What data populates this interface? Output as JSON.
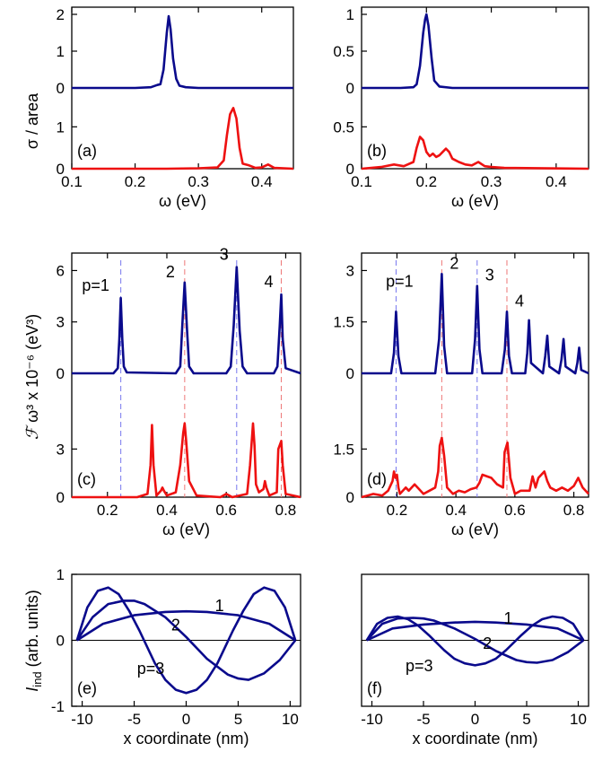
{
  "colors": {
    "blue": "#0a0a8c",
    "red": "#ee1111",
    "guide_blue": "#7777ee",
    "guide_red": "#ee7777"
  },
  "labels": {
    "ylabel_top": "σ / area",
    "ylabel_mid_glyph": "ℱ",
    "ylabel_mid_rest": " ω³ x 10⁻⁶ (eV³)",
    "ylabel_bot_main": "I",
    "ylabel_bot_sub": "ind",
    "ylabel_bot_rest": " (arb. units)",
    "xlabel_omega": "ω (eV)",
    "xlabel_x": "x coordinate (nm)"
  },
  "chart_data": [
    {
      "id": "a",
      "type": "line",
      "panel_label": "(a)",
      "xlabel": "ω (eV)",
      "ylabel": "σ / area",
      "xlim": [
        0.1,
        0.45
      ],
      "xticks": [
        "0.1",
        "0.2",
        "0.3",
        "0.4"
      ],
      "upper": {
        "ylim": [
          0,
          2
        ],
        "yticks": [
          "0",
          "1",
          "2"
        ]
      },
      "lower": {
        "ylim": [
          0,
          1.5
        ],
        "yticks": [
          "0",
          "1"
        ]
      },
      "series": [
        {
          "color": "blue",
          "offset": "upper",
          "x": [
            0.1,
            0.2,
            0.225,
            0.235,
            0.24,
            0.245,
            0.25,
            0.253,
            0.256,
            0.26,
            0.265,
            0.27,
            0.28,
            0.3,
            0.45
          ],
          "y": [
            0.0,
            0.0,
            0.02,
            0.08,
            0.1,
            0.5,
            1.5,
            1.95,
            1.6,
            0.8,
            0.25,
            0.06,
            0.02,
            0.0,
            0.0
          ]
        },
        {
          "color": "red",
          "offset": "lower",
          "x": [
            0.1,
            0.25,
            0.3,
            0.33,
            0.34,
            0.345,
            0.35,
            0.355,
            0.36,
            0.365,
            0.37,
            0.38,
            0.39,
            0.4,
            0.41,
            0.42,
            0.45
          ],
          "y": [
            0.0,
            0.0,
            0.01,
            0.03,
            0.2,
            0.8,
            1.3,
            1.45,
            1.2,
            0.5,
            0.12,
            0.08,
            0.02,
            0.03,
            0.1,
            0.02,
            0.0
          ]
        }
      ]
    },
    {
      "id": "b",
      "type": "line",
      "panel_label": "(b)",
      "xlabel": "ω (eV)",
      "xlim": [
        0.1,
        0.45
      ],
      "xticks": [
        "0.1",
        "0.2",
        "0.3",
        "0.4"
      ],
      "upper": {
        "ylim": [
          0,
          1
        ],
        "yticks": [
          "0",
          "0.5",
          "1"
        ]
      },
      "lower": {
        "ylim": [
          0,
          0.75
        ],
        "yticks": [
          "0",
          "0.5"
        ]
      },
      "series": [
        {
          "color": "blue",
          "offset": "upper",
          "x": [
            0.1,
            0.16,
            0.18,
            0.185,
            0.19,
            0.195,
            0.198,
            0.2,
            0.203,
            0.208,
            0.212,
            0.22,
            0.24,
            0.45
          ],
          "y": [
            0.0,
            0.0,
            0.01,
            0.05,
            0.3,
            0.75,
            0.93,
            1.0,
            0.85,
            0.4,
            0.1,
            0.02,
            0.0,
            0.0
          ]
        },
        {
          "color": "red",
          "offset": "lower",
          "x": [
            0.1,
            0.13,
            0.15,
            0.165,
            0.18,
            0.185,
            0.19,
            0.195,
            0.2,
            0.205,
            0.21,
            0.215,
            0.22,
            0.225,
            0.23,
            0.235,
            0.24,
            0.25,
            0.26,
            0.27,
            0.28,
            0.29,
            0.3,
            0.32,
            0.45
          ],
          "y": [
            0.0,
            0.02,
            0.05,
            0.03,
            0.08,
            0.25,
            0.38,
            0.34,
            0.2,
            0.15,
            0.18,
            0.14,
            0.16,
            0.2,
            0.24,
            0.2,
            0.12,
            0.08,
            0.05,
            0.04,
            0.08,
            0.03,
            0.02,
            0.01,
            0.0
          ]
        }
      ]
    },
    {
      "id": "c",
      "type": "line",
      "panel_label": "(c)",
      "xlabel": "ω (eV)",
      "ylabel": "ℱ ω³ x 10⁻⁶ (eV³)",
      "xlim": [
        0.08,
        0.85
      ],
      "xticks": [
        "0.2",
        "0.4",
        "0.6",
        "0.8"
      ],
      "upper": {
        "ylim": [
          0,
          6.6
        ],
        "yticks": [
          "0",
          "3",
          "6"
        ]
      },
      "lower": {
        "ylim": [
          0,
          6.6
        ],
        "yticks": [
          "0",
          "3"
        ]
      },
      "peak_labels": [
        "p=1",
        "2",
        "3",
        "4"
      ],
      "guide_lines": [
        {
          "x": 0.245,
          "color": "guide_blue"
        },
        {
          "x": 0.46,
          "color": "guide_red"
        },
        {
          "x": 0.635,
          "color": "guide_blue"
        },
        {
          "x": 0.785,
          "color": "guide_red"
        }
      ],
      "series": [
        {
          "color": "blue",
          "offset": "upper",
          "x": [
            0.08,
            0.22,
            0.235,
            0.24,
            0.245,
            0.25,
            0.255,
            0.265,
            0.43,
            0.445,
            0.452,
            0.46,
            0.468,
            0.475,
            0.49,
            0.6,
            0.615,
            0.625,
            0.635,
            0.645,
            0.655,
            0.67,
            0.76,
            0.772,
            0.78,
            0.785,
            0.79,
            0.8,
            0.85
          ],
          "y": [
            0.0,
            0.0,
            0.3,
            2.0,
            4.4,
            2.0,
            0.4,
            0.05,
            0.0,
            0.4,
            2.8,
            5.3,
            2.5,
            0.4,
            0.0,
            0.0,
            0.4,
            2.8,
            6.2,
            2.5,
            0.4,
            0.0,
            0.0,
            0.4,
            2.8,
            4.6,
            2.0,
            0.3,
            0.0
          ]
        },
        {
          "color": "red",
          "offset": "lower",
          "x": [
            0.08,
            0.3,
            0.335,
            0.345,
            0.35,
            0.355,
            0.365,
            0.38,
            0.385,
            0.39,
            0.4,
            0.43,
            0.445,
            0.455,
            0.46,
            0.465,
            0.475,
            0.5,
            0.58,
            0.6,
            0.62,
            0.67,
            0.68,
            0.69,
            0.695,
            0.7,
            0.71,
            0.725,
            0.73,
            0.735,
            0.745,
            0.77,
            0.775,
            0.785,
            0.79,
            0.8,
            0.85
          ],
          "y": [
            0.0,
            0.0,
            0.2,
            2.0,
            4.5,
            2.0,
            0.1,
            0.4,
            0.6,
            0.4,
            0.1,
            0.3,
            2.0,
            4.0,
            4.6,
            3.5,
            1.0,
            0.1,
            0.0,
            0.2,
            0.0,
            0.2,
            2.0,
            4.6,
            3.2,
            0.8,
            0.3,
            0.5,
            1.0,
            0.6,
            0.1,
            0.3,
            3.0,
            3.5,
            2.0,
            0.2,
            0.0
          ]
        }
      ]
    },
    {
      "id": "d",
      "type": "line",
      "panel_label": "(d)",
      "xlabel": "ω (eV)",
      "xlim": [
        0.08,
        0.85
      ],
      "xticks": [
        "0.2",
        "0.4",
        "0.6",
        "0.8"
      ],
      "upper": {
        "ylim": [
          0,
          3.3
        ],
        "yticks": [
          "0",
          "1.5",
          "3"
        ]
      },
      "lower": {
        "ylim": [
          0,
          3.3
        ],
        "yticks": [
          "0",
          "1.5"
        ]
      },
      "peak_labels": [
        "p=1",
        "2",
        "3",
        "4"
      ],
      "guide_lines": [
        {
          "x": 0.197,
          "color": "guide_blue"
        },
        {
          "x": 0.352,
          "color": "guide_red"
        },
        {
          "x": 0.472,
          "color": "guide_blue"
        },
        {
          "x": 0.573,
          "color": "guide_red"
        }
      ],
      "series": [
        {
          "color": "blue",
          "offset": "upper",
          "x": [
            0.08,
            0.18,
            0.19,
            0.197,
            0.205,
            0.215,
            0.33,
            0.343,
            0.352,
            0.36,
            0.37,
            0.455,
            0.465,
            0.472,
            0.48,
            0.49,
            0.555,
            0.566,
            0.573,
            0.58,
            0.59,
            0.635,
            0.642,
            0.648,
            0.655,
            0.695,
            0.703,
            0.71,
            0.717,
            0.75,
            0.758,
            0.765,
            0.772,
            0.805,
            0.812,
            0.818,
            0.825,
            0.85
          ],
          "y": [
            0.0,
            0.0,
            0.6,
            1.8,
            0.5,
            0.0,
            0.0,
            1.0,
            2.9,
            0.8,
            0.0,
            0.0,
            1.0,
            2.55,
            0.7,
            0.0,
            0.0,
            0.7,
            1.8,
            0.5,
            0.0,
            0.0,
            0.6,
            1.55,
            0.3,
            0.0,
            0.5,
            1.1,
            0.2,
            0.0,
            0.4,
            1.0,
            0.2,
            0.0,
            0.3,
            0.75,
            0.1,
            0.0
          ]
        },
        {
          "color": "red",
          "offset": "lower",
          "x": [
            0.08,
            0.1,
            0.12,
            0.15,
            0.17,
            0.185,
            0.19,
            0.195,
            0.2,
            0.205,
            0.21,
            0.23,
            0.24,
            0.26,
            0.27,
            0.29,
            0.31,
            0.33,
            0.34,
            0.345,
            0.352,
            0.36,
            0.37,
            0.39,
            0.41,
            0.43,
            0.45,
            0.47,
            0.48,
            0.49,
            0.52,
            0.54,
            0.56,
            0.565,
            0.575,
            0.585,
            0.6,
            0.62,
            0.65,
            0.66,
            0.67,
            0.68,
            0.7,
            0.71,
            0.72,
            0.74,
            0.76,
            0.78,
            0.8,
            0.815,
            0.83,
            0.85
          ],
          "y": [
            0.0,
            0.05,
            0.1,
            0.05,
            0.2,
            0.5,
            0.8,
            0.6,
            0.7,
            0.3,
            0.1,
            0.3,
            0.2,
            0.4,
            0.3,
            0.1,
            0.2,
            0.3,
            0.8,
            1.6,
            1.85,
            1.3,
            0.3,
            0.1,
            0.2,
            0.15,
            0.25,
            0.3,
            0.45,
            0.7,
            0.6,
            0.4,
            0.3,
            1.4,
            1.7,
            0.6,
            0.1,
            0.2,
            0.2,
            0.65,
            0.3,
            0.6,
            0.8,
            0.5,
            0.3,
            0.2,
            0.3,
            0.2,
            0.35,
            0.6,
            0.3,
            0.1
          ]
        }
      ]
    },
    {
      "id": "e",
      "type": "line",
      "panel_label": "(e)",
      "xlabel": "x coordinate (nm)",
      "ylabel": "Iind (arb. units)",
      "xlim": [
        -11,
        11
      ],
      "ylim": [
        -1,
        1
      ],
      "xticks": [
        "-10",
        "-5",
        "0",
        "5",
        "10"
      ],
      "yticks": [
        "-1",
        "0",
        "1"
      ],
      "curve_labels": [
        "1",
        "2",
        "p=3"
      ],
      "series": [
        {
          "name": "1",
          "color": "blue",
          "x": [
            -10.5,
            -8,
            -5,
            -2,
            0,
            2,
            5,
            8,
            10.5
          ],
          "y": [
            0.0,
            0.25,
            0.38,
            0.43,
            0.44,
            0.43,
            0.38,
            0.25,
            0.0
          ]
        },
        {
          "name": "2",
          "color": "blue",
          "x": [
            -10.5,
            -9,
            -7.5,
            -6,
            -5,
            -4,
            -2,
            0,
            2,
            4,
            5,
            6,
            7.5,
            9,
            10.5
          ],
          "y": [
            0.0,
            0.35,
            0.55,
            0.6,
            0.6,
            0.55,
            0.35,
            0.05,
            -0.28,
            -0.52,
            -0.58,
            -0.6,
            -0.5,
            -0.3,
            0.0
          ]
        },
        {
          "name": "p=3",
          "color": "blue",
          "x": [
            -10.5,
            -9.5,
            -8.5,
            -7.5,
            -6.5,
            -5.5,
            -4.5,
            -3,
            -2,
            -1,
            0,
            1,
            2,
            3,
            4.5,
            5.5,
            6.5,
            7.5,
            8.5,
            9.5,
            10.5
          ],
          "y": [
            0.0,
            0.5,
            0.75,
            0.8,
            0.7,
            0.45,
            0.15,
            -0.35,
            -0.6,
            -0.75,
            -0.8,
            -0.75,
            -0.6,
            -0.35,
            0.15,
            0.45,
            0.7,
            0.8,
            0.75,
            0.5,
            0.0
          ]
        }
      ]
    },
    {
      "id": "f",
      "type": "line",
      "panel_label": "(f)",
      "xlabel": "x coordinate (nm)",
      "xlim": [
        -11,
        11
      ],
      "ylim": [
        -1,
        1
      ],
      "xticks": [
        "-10",
        "-5",
        "0",
        "5",
        "10"
      ],
      "yticks": [],
      "curve_labels": [
        "1",
        "2",
        "p=3"
      ],
      "series": [
        {
          "name": "1",
          "color": "blue",
          "x": [
            -10.5,
            -8,
            -5,
            -2,
            0,
            2,
            5,
            8,
            10.5
          ],
          "y": [
            0.0,
            0.18,
            0.24,
            0.27,
            0.28,
            0.27,
            0.24,
            0.18,
            0.0
          ]
        },
        {
          "name": "2",
          "color": "blue",
          "x": [
            -10.5,
            -9,
            -7.5,
            -6,
            -5,
            -4,
            -2,
            0,
            2,
            4,
            5,
            6,
            7.5,
            9,
            10.5
          ],
          "y": [
            0.0,
            0.25,
            0.33,
            0.34,
            0.33,
            0.3,
            0.18,
            0.02,
            -0.16,
            -0.3,
            -0.33,
            -0.34,
            -0.3,
            -0.18,
            0.0
          ]
        },
        {
          "name": "p=3",
          "color": "blue",
          "x": [
            -10.5,
            -9.5,
            -8.5,
            -7.5,
            -6.5,
            -5.5,
            -4.5,
            -3,
            -2,
            -1,
            0,
            1,
            2,
            3,
            4.5,
            5.5,
            6.5,
            7.5,
            8.5,
            9.5,
            10.5
          ],
          "y": [
            0.0,
            0.25,
            0.34,
            0.36,
            0.32,
            0.22,
            0.08,
            -0.15,
            -0.28,
            -0.35,
            -0.38,
            -0.35,
            -0.28,
            -0.15,
            0.08,
            0.22,
            0.32,
            0.36,
            0.34,
            0.25,
            0.0
          ]
        }
      ]
    }
  ]
}
